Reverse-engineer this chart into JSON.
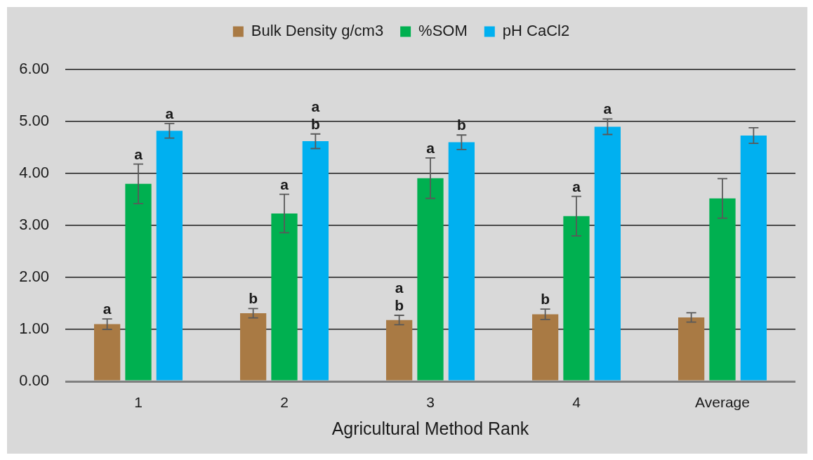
{
  "chart_data": {
    "type": "bar",
    "categories": [
      "1",
      "2",
      "3",
      "4",
      "Average"
    ],
    "xlabel": "Agricultural Method Rank",
    "series": [
      {
        "name": "Bulk Density g/cm3",
        "color": "#a97a44",
        "values": [
          1.1,
          1.31,
          1.18,
          1.29,
          1.23
        ],
        "errors": [
          0.1,
          0.09,
          0.09,
          0.1,
          0.09
        ],
        "value_labels": [
          "a",
          "b",
          "a\nb",
          "b",
          null
        ]
      },
      {
        "name": "%SOM",
        "color": "#00b050",
        "values": [
          3.8,
          3.23,
          3.91,
          3.18,
          3.52
        ],
        "errors": [
          0.38,
          0.37,
          0.39,
          0.38,
          0.38
        ],
        "value_labels": [
          "a",
          "a",
          "a",
          "a",
          null
        ]
      },
      {
        "name": "pH CaCl2",
        "color": "#00b0f0",
        "values": [
          4.82,
          4.62,
          4.6,
          4.9,
          4.73
        ],
        "errors": [
          0.14,
          0.14,
          0.14,
          0.15,
          0.15
        ],
        "value_labels": [
          "a",
          "a\nb",
          "b",
          "a",
          null
        ]
      }
    ],
    "ylim": [
      0,
      6
    ],
    "yticks": [
      {
        "value": 0,
        "label": "0.00"
      },
      {
        "value": 1,
        "label": "1.00"
      },
      {
        "value": 2,
        "label": "2.00"
      },
      {
        "value": 3,
        "label": "3.00"
      },
      {
        "value": 4,
        "label": "4.00"
      },
      {
        "value": 5,
        "label": "5.00"
      },
      {
        "value": 6,
        "label": "6.00"
      }
    ],
    "grid": "y",
    "legend": "top"
  }
}
